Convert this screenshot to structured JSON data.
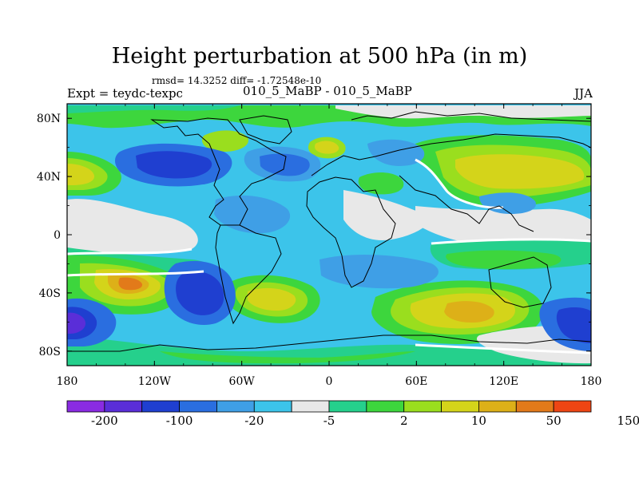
{
  "title": "Height perturbation at 500 hPa (in m)",
  "stats_text": "rmsd= 14.3252 diff= -1.72548e-10",
  "left_label": "Expt = teydc-texpc",
  "center_label": "010_5_MaBP - 010_5_MaBP",
  "right_label": "JJA",
  "x_ticks": [
    "180",
    "120W",
    "60W",
    "0",
    "60E",
    "120E",
    "180"
  ],
  "y_ticks": [
    "80N",
    "40N",
    "0",
    "40S",
    "80S"
  ],
  "colorbar": {
    "colors": [
      "#8a2be2",
      "#5a2ed8",
      "#1f3fd0",
      "#2a6ee0",
      "#3f9fe6",
      "#3cc4ea",
      "#e8e8e8",
      "#25d08c",
      "#3dd63d",
      "#9ade1e",
      "#d4d41a",
      "#ddb018",
      "#e27a1a",
      "#ee4514"
    ],
    "labels": [
      "-200",
      "-100",
      "-20",
      "-5",
      "2",
      "10",
      "50",
      "150"
    ]
  }
}
